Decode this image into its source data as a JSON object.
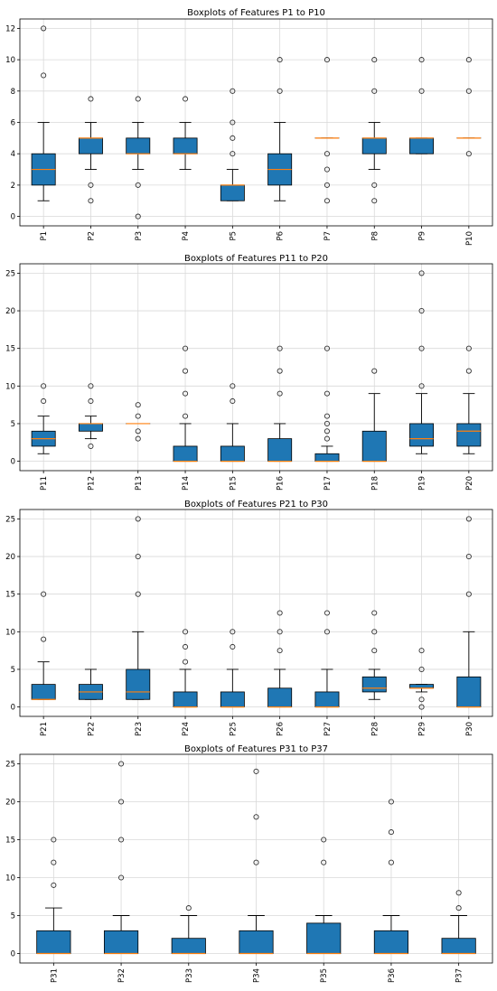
{
  "colors": {
    "box": "#1f77b4",
    "median": "#ff7f0e",
    "grid": "#d9d9d9",
    "axis": "#000000"
  },
  "chart_data": [
    {
      "type": "boxplot",
      "title": "Boxplots of Features P1 to P10",
      "ylim": [
        -0.6,
        12.6
      ],
      "yticks": [
        0,
        2,
        4,
        6,
        8,
        10,
        12
      ],
      "grid": true,
      "categories": [
        "P1",
        "P2",
        "P3",
        "P4",
        "P5",
        "P6",
        "P7",
        "P8",
        "P9",
        "P10"
      ],
      "boxes": [
        {
          "q1": 2,
          "median": 3,
          "q3": 4,
          "whislo": 1,
          "whishi": 6,
          "fliers": [
            9,
            12
          ]
        },
        {
          "q1": 4,
          "median": 5,
          "q3": 5,
          "whislo": 3,
          "whishi": 6,
          "fliers": [
            1,
            2,
            7.5
          ]
        },
        {
          "q1": 4,
          "median": 4,
          "q3": 5,
          "whislo": 3,
          "whishi": 6,
          "fliers": [
            0,
            2,
            7.5
          ]
        },
        {
          "q1": 4,
          "median": 4,
          "q3": 5,
          "whislo": 3,
          "whishi": 6,
          "fliers": [
            7.5
          ]
        },
        {
          "q1": 1,
          "median": 2,
          "q3": 2,
          "whislo": 1,
          "whishi": 3,
          "fliers": [
            4,
            5,
            6,
            8
          ]
        },
        {
          "q1": 2,
          "median": 3,
          "q3": 4,
          "whislo": 1,
          "whishi": 6,
          "fliers": [
            8,
            10
          ]
        },
        {
          "q1": 5,
          "median": 5,
          "q3": 5,
          "whislo": 5,
          "whishi": 5,
          "fliers": [
            1,
            2,
            3,
            4,
            10
          ]
        },
        {
          "q1": 4,
          "median": 5,
          "q3": 5,
          "whislo": 3,
          "whishi": 6,
          "fliers": [
            1,
            2,
            8,
            10
          ]
        },
        {
          "q1": 4,
          "median": 5,
          "q3": 5,
          "whislo": 4,
          "whishi": 5,
          "fliers": [
            8,
            10
          ]
        },
        {
          "q1": 5,
          "median": 5,
          "q3": 5,
          "whislo": 5,
          "whishi": 5,
          "fliers": [
            4,
            8,
            10
          ]
        }
      ]
    },
    {
      "type": "boxplot",
      "title": "Boxplots of Features P11 to P20",
      "ylim": [
        -1.25,
        26.25
      ],
      "yticks": [
        0,
        5,
        10,
        15,
        20,
        25
      ],
      "grid": true,
      "categories": [
        "P11",
        "P12",
        "P13",
        "P14",
        "P15",
        "P16",
        "P17",
        "P18",
        "P19",
        "P20"
      ],
      "boxes": [
        {
          "q1": 2,
          "median": 3,
          "q3": 4,
          "whislo": 1,
          "whishi": 6,
          "fliers": [
            8,
            10
          ]
        },
        {
          "q1": 4,
          "median": 5,
          "q3": 5,
          "whislo": 3,
          "whishi": 6,
          "fliers": [
            2,
            8,
            10
          ]
        },
        {
          "q1": 5,
          "median": 5,
          "q3": 5,
          "whislo": 5,
          "whishi": 5,
          "fliers": [
            3,
            4,
            6,
            7.5
          ]
        },
        {
          "q1": 0,
          "median": 0,
          "q3": 2,
          "whislo": 0,
          "whishi": 5,
          "fliers": [
            6,
            9,
            12,
            15
          ]
        },
        {
          "q1": 0,
          "median": 0,
          "q3": 2,
          "whislo": 0,
          "whishi": 5,
          "fliers": [
            8,
            10
          ]
        },
        {
          "q1": 0,
          "median": 0,
          "q3": 3,
          "whislo": 0,
          "whishi": 5,
          "fliers": [
            9,
            12,
            15
          ]
        },
        {
          "q1": 0,
          "median": 0,
          "q3": 1,
          "whislo": 0,
          "whishi": 2,
          "fliers": [
            3,
            4,
            5,
            6,
            9,
            15
          ]
        },
        {
          "q1": 0,
          "median": 0,
          "q3": 4,
          "whislo": 0,
          "whishi": 9,
          "fliers": [
            12
          ]
        },
        {
          "q1": 2,
          "median": 3,
          "q3": 5,
          "whislo": 1,
          "whishi": 9,
          "fliers": [
            10,
            15,
            20,
            25
          ]
        },
        {
          "q1": 2,
          "median": 4,
          "q3": 5,
          "whislo": 1,
          "whishi": 9,
          "fliers": [
            12,
            15
          ]
        }
      ]
    },
    {
      "type": "boxplot",
      "title": "Boxplots of Features P21 to P30",
      "ylim": [
        -1.25,
        26.25
      ],
      "yticks": [
        0,
        5,
        10,
        15,
        20,
        25
      ],
      "grid": true,
      "categories": [
        "P21",
        "P22",
        "P23",
        "P24",
        "P25",
        "P26",
        "P27",
        "P28",
        "P29",
        "P30"
      ],
      "boxes": [
        {
          "q1": 1,
          "median": 1,
          "q3": 3,
          "whislo": 1,
          "whishi": 6,
          "fliers": [
            9,
            15
          ]
        },
        {
          "q1": 1,
          "median": 2,
          "q3": 3,
          "whislo": 1,
          "whishi": 5,
          "fliers": []
        },
        {
          "q1": 1,
          "median": 2,
          "q3": 5,
          "whislo": 1,
          "whishi": 10,
          "fliers": [
            15,
            20,
            25
          ]
        },
        {
          "q1": 0,
          "median": 0,
          "q3": 2,
          "whislo": 0,
          "whishi": 5,
          "fliers": [
            6,
            8,
            10
          ]
        },
        {
          "q1": 0,
          "median": 0,
          "q3": 2,
          "whislo": 0,
          "whishi": 5,
          "fliers": [
            8,
            10
          ]
        },
        {
          "q1": 0,
          "median": 0,
          "q3": 2.5,
          "whislo": 0,
          "whishi": 5,
          "fliers": [
            7.5,
            10,
            12.5
          ]
        },
        {
          "q1": 0,
          "median": 0,
          "q3": 2,
          "whislo": 0,
          "whishi": 5,
          "fliers": [
            10,
            12.5
          ]
        },
        {
          "q1": 2,
          "median": 2.5,
          "q3": 4,
          "whislo": 1,
          "whishi": 5,
          "fliers": [
            7.5,
            10,
            12.5
          ]
        },
        {
          "q1": 2.5,
          "median": 2.5,
          "q3": 3,
          "whislo": 2,
          "whishi": 3,
          "fliers": [
            0,
            1,
            5,
            7.5
          ]
        },
        {
          "q1": 0,
          "median": 0,
          "q3": 4,
          "whislo": 0,
          "whishi": 10,
          "fliers": [
            15,
            20,
            25
          ]
        }
      ]
    },
    {
      "type": "boxplot",
      "title": "Boxplots of Features P31 to P37",
      "ylim": [
        -1.25,
        26.25
      ],
      "yticks": [
        0,
        5,
        10,
        15,
        20,
        25
      ],
      "grid": true,
      "categories": [
        "P31",
        "P32",
        "P33",
        "P34",
        "P35",
        "P36",
        "P37"
      ],
      "boxes": [
        {
          "q1": 0,
          "median": 0,
          "q3": 3,
          "whislo": 0,
          "whishi": 6,
          "fliers": [
            9,
            12,
            15
          ]
        },
        {
          "q1": 0,
          "median": 0,
          "q3": 3,
          "whislo": 0,
          "whishi": 5,
          "fliers": [
            10,
            15,
            20,
            25
          ]
        },
        {
          "q1": 0,
          "median": 0,
          "q3": 2,
          "whislo": 0,
          "whishi": 5,
          "fliers": [
            6
          ]
        },
        {
          "q1": 0,
          "median": 0,
          "q3": 3,
          "whislo": 0,
          "whishi": 5,
          "fliers": [
            12,
            18,
            24
          ]
        },
        {
          "q1": 0,
          "median": 0,
          "q3": 4,
          "whislo": 0,
          "whishi": 5,
          "fliers": [
            12,
            15
          ]
        },
        {
          "q1": 0,
          "median": 0,
          "q3": 3,
          "whislo": 0,
          "whishi": 5,
          "fliers": [
            12,
            16,
            20
          ]
        },
        {
          "q1": 0,
          "median": 0,
          "q3": 2,
          "whislo": 0,
          "whishi": 5,
          "fliers": [
            6,
            8
          ]
        }
      ]
    }
  ]
}
